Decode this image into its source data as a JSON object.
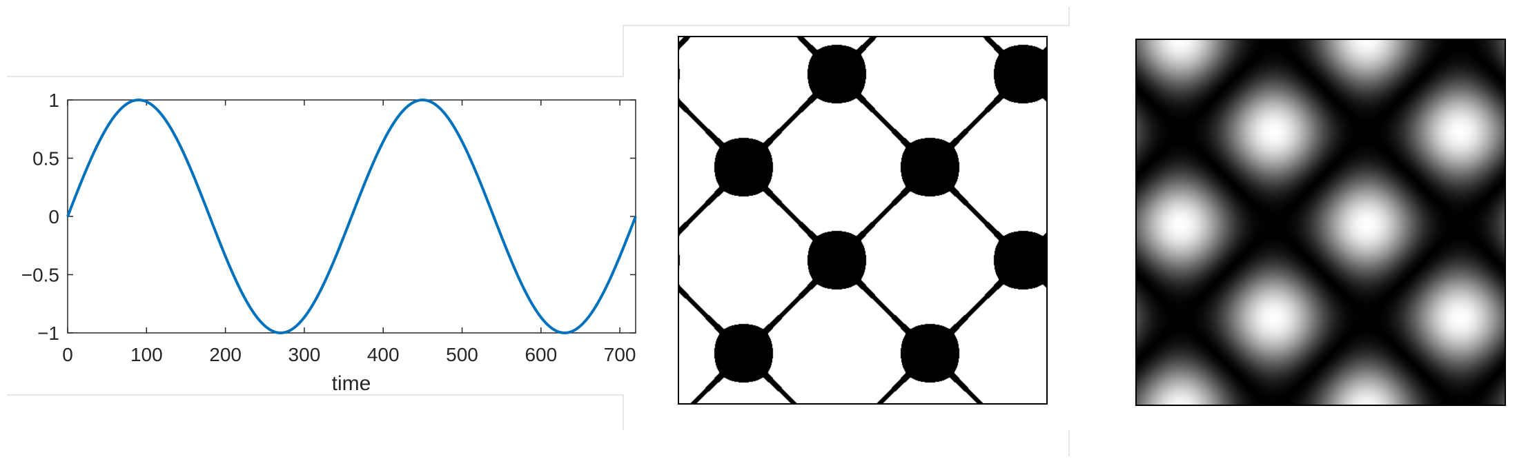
{
  "colors": {
    "series": "#0072BD",
    "axis": "#262626",
    "guide": "#e6e6e6",
    "pattern_dark": "#000000",
    "pattern_light": "#ffffff"
  },
  "chart_data": [
    {
      "type": "line",
      "title": "",
      "xlabel": "time",
      "ylabel": "",
      "xlim": [
        0,
        720
      ],
      "ylim": [
        -1,
        1
      ],
      "xticks": [
        0,
        100,
        200,
        300,
        400,
        500,
        600,
        700
      ],
      "yticks": [
        -1,
        -0.5,
        0,
        0.5,
        1
      ],
      "xtick_labels": [
        "0",
        "100",
        "200",
        "300",
        "400",
        "500",
        "600",
        "700"
      ],
      "ytick_labels": [
        "−1",
        "−0.5",
        "0",
        "0.5",
        "1"
      ],
      "grid": false,
      "series": [
        {
          "function": "sin(2*pi*t/360)",
          "x": [
            0,
            30,
            60,
            90,
            120,
            150,
            180,
            210,
            240,
            270,
            300,
            330,
            360,
            390,
            420,
            450,
            480,
            510,
            540,
            570,
            600,
            630,
            660,
            690,
            720
          ],
          "y": [
            0,
            0.5,
            0.866,
            1,
            0.866,
            0.5,
            0,
            -0.5,
            -0.866,
            -1,
            -0.866,
            -0.5,
            0,
            0.5,
            0.866,
            1,
            0.866,
            0.5,
            0,
            -0.5,
            -0.866,
            -1,
            -0.866,
            -0.5,
            0
          ]
        }
      ]
    },
    {
      "type": "heatmap",
      "pattern": "binary",
      "description_function": "diagonal lattice of diamond-shaped white cells separated by thin black lines with black junction nodes",
      "colormap": [
        "#000000",
        "#ffffff"
      ]
    },
    {
      "type": "heatmap",
      "pattern": "grayscale",
      "description_function": "diagonal lattice of bright blobs on black with dark diagonal ridges",
      "colormap": [
        "#000000",
        "#ffffff"
      ]
    }
  ]
}
